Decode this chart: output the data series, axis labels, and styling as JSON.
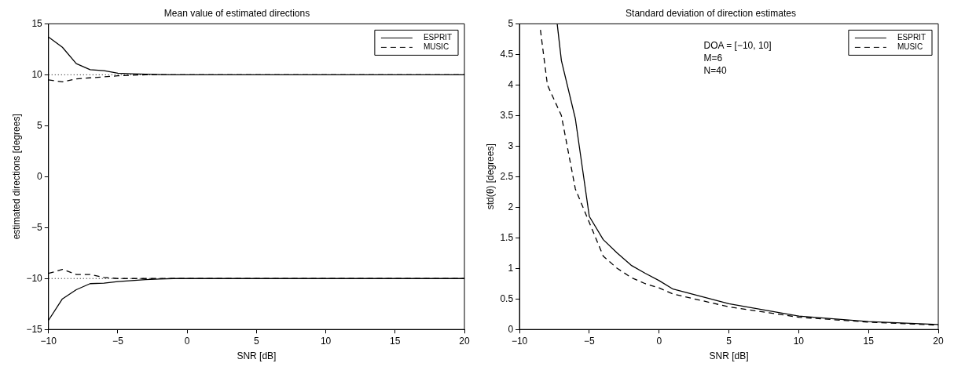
{
  "chart_data": [
    {
      "type": "line",
      "title": "Mean value of estimated directions",
      "xlabel": "SNR [dB]",
      "ylabel": "estimated directions [degrees]",
      "x": [
        -10,
        -9,
        -8,
        -7,
        -6,
        -5,
        -4,
        -3,
        -2,
        -1,
        0,
        1,
        2,
        3,
        4,
        5,
        6,
        7,
        8,
        9,
        10,
        11,
        12,
        13,
        14,
        15,
        16,
        17,
        18,
        19,
        20
      ],
      "series": [
        {
          "name": "ESPRIT",
          "color": "#000000",
          "line_style": "solid",
          "values": [
            13.7,
            12.7,
            11.1,
            10.5,
            10.4,
            10.15,
            10.1,
            10.05,
            10.02,
            10,
            10,
            10,
            10,
            10,
            10,
            10,
            10,
            10,
            10,
            10,
            10,
            10,
            10,
            10,
            10,
            10,
            10,
            10,
            10,
            10,
            10
          ]
        },
        {
          "name": "MUSIC",
          "color": "#000000",
          "line_style": "dashed",
          "values": [
            9.5,
            9.3,
            9.6,
            9.7,
            9.8,
            9.9,
            9.95,
            10,
            10,
            10,
            10,
            10,
            10,
            10,
            10,
            10,
            10,
            10,
            10,
            10,
            10,
            10,
            10,
            10,
            10,
            10,
            10,
            10,
            10,
            10,
            10
          ]
        },
        {
          "color": "#000000",
          "line_style": "solid",
          "values": [
            -14.1,
            -12,
            -11.1,
            -10.5,
            -10.45,
            -10.3,
            -10.2,
            -10.1,
            -10.05,
            -10,
            -10,
            -10,
            -10,
            -10,
            -10,
            -10,
            -10,
            -10,
            -10,
            -10,
            -10,
            -10,
            -10,
            -10,
            -10,
            -10,
            -10,
            -10,
            -10,
            -10,
            -10
          ]
        },
        {
          "color": "#000000",
          "line_style": "dashed",
          "values": [
            -9.5,
            -9.1,
            -9.6,
            -9.6,
            -9.9,
            -10,
            -10,
            -10,
            -10,
            -10,
            -10,
            -10,
            -10,
            -10,
            -10,
            -10,
            -10,
            -10,
            -10,
            -10,
            -10,
            -10,
            -10,
            -10,
            -10,
            -10,
            -10,
            -10,
            -10,
            -10,
            -10
          ]
        }
      ],
      "ref_lines": [
        {
          "axis": "y",
          "value": 10,
          "line_style": "dotted"
        },
        {
          "axis": "y",
          "value": -10,
          "line_style": "dotted"
        }
      ],
      "xlim": [
        -10,
        20
      ],
      "xticks": [
        -10,
        -5,
        0,
        5,
        10,
        15,
        20
      ],
      "ylim": [
        -15,
        15
      ],
      "yticks": [
        -15,
        -10,
        -5,
        0,
        5,
        10,
        15
      ],
      "grid": false,
      "legend": "top right",
      "marker": "none"
    },
    {
      "type": "line",
      "title": "Standard deviation of direction estimates",
      "xlabel": "SNR [dB]",
      "ylabel": "std(θ) [degrees]",
      "annotations": [
        "DOA = [−10, 10]",
        "M=6",
        "N=40"
      ],
      "series": [
        {
          "name": "ESPRIT",
          "color": "#000000",
          "line_style": "solid",
          "x": [
            -7.3,
            -7,
            -6,
            -5,
            -4,
            -3,
            -2,
            -1,
            0,
            1,
            5,
            10,
            15,
            20
          ],
          "values": [
            5,
            4.4,
            3.45,
            1.85,
            1.47,
            1.25,
            1.05,
            0.92,
            0.8,
            0.66,
            0.42,
            0.22,
            0.13,
            0.08
          ]
        },
        {
          "name": "MUSIC",
          "color": "#000000",
          "line_style": "dashed",
          "x": [
            -8.5,
            -8,
            -7,
            -6,
            -5,
            -4,
            -3,
            -2,
            -1,
            0,
            1,
            5,
            10,
            15,
            20
          ],
          "values": [
            4.9,
            4.0,
            3.5,
            2.3,
            1.75,
            1.2,
            1.0,
            0.85,
            0.75,
            0.68,
            0.58,
            0.37,
            0.2,
            0.12,
            0.07
          ]
        }
      ],
      "xlim": [
        -10,
        20
      ],
      "xticks": [
        -10,
        -5,
        0,
        5,
        10,
        15,
        20
      ],
      "ylim": [
        0,
        5
      ],
      "yticks": [
        0,
        0.5,
        1,
        1.5,
        2,
        2.5,
        3,
        3.5,
        4,
        4.5,
        5
      ],
      "grid": false,
      "legend": "top right",
      "marker": "none"
    }
  ]
}
